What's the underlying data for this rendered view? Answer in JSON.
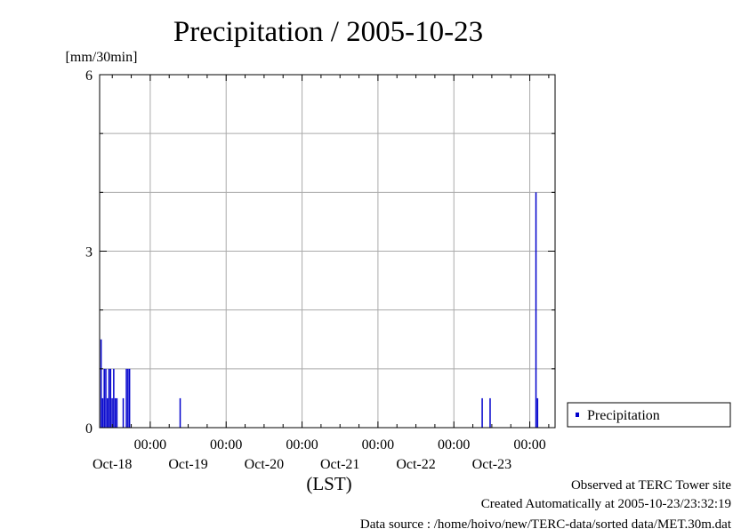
{
  "chart_data": {
    "type": "bar",
    "title": "Precipitation / 2005-10-23",
    "ylabel": "[mm/30min]",
    "xlabel": "(LST)",
    "ylim": [
      0,
      6
    ],
    "yticks": [
      "0",
      "3",
      "6"
    ],
    "xlim": [
      "2005-10-17 08:00",
      "2005-10-23 08:00"
    ],
    "xticks": [
      {
        "time": "00:00",
        "date": "Oct-18"
      },
      {
        "time": "00:00",
        "date": "Oct-19"
      },
      {
        "time": "00:00",
        "date": "Oct-20"
      },
      {
        "time": "00:00",
        "date": "Oct-21"
      },
      {
        "time": "00:00",
        "date": "Oct-22"
      },
      {
        "time": "00:00",
        "date": "Oct-23"
      }
    ],
    "grid": true,
    "legend_position": "right",
    "series": [
      {
        "name": "Precipitation",
        "color": "#0000cc",
        "points": [
          {
            "x": "2005-10-17 08:30",
            "y": 1.5
          },
          {
            "x": "2005-10-17 09:00",
            "y": 0.5
          },
          {
            "x": "2005-10-17 09:30",
            "y": 1.0
          },
          {
            "x": "2005-10-17 10:00",
            "y": 1.0
          },
          {
            "x": "2005-10-17 10:30",
            "y": 0.5
          },
          {
            "x": "2005-10-17 11:00",
            "y": 1.0
          },
          {
            "x": "2005-10-17 11:30",
            "y": 1.0
          },
          {
            "x": "2005-10-17 12:00",
            "y": 0.5
          },
          {
            "x": "2005-10-17 12:30",
            "y": 1.0
          },
          {
            "x": "2005-10-17 13:00",
            "y": 0.5
          },
          {
            "x": "2005-10-17 13:30",
            "y": 0.5
          },
          {
            "x": "2005-10-17 15:30",
            "y": 0.5
          },
          {
            "x": "2005-10-17 16:30",
            "y": 1.0
          },
          {
            "x": "2005-10-17 17:00",
            "y": 1.0
          },
          {
            "x": "2005-10-17 17:30",
            "y": 1.0
          },
          {
            "x": "2005-10-18 09:30",
            "y": 0.5
          },
          {
            "x": "2005-10-22 09:00",
            "y": 0.5
          },
          {
            "x": "2005-10-22 11:30",
            "y": 0.5
          },
          {
            "x": "2005-10-23 02:00",
            "y": 4.0
          },
          {
            "x": "2005-10-23 02:30",
            "y": 0.5
          }
        ]
      }
    ]
  },
  "footer": {
    "observed": "Observed at TERC Tower site",
    "created": "Created Automatically at 2005-10-23/23:32:19",
    "source": "Data source : /home/hoivo/new/TERC-data/sorted  data/MET.30m.dat"
  }
}
